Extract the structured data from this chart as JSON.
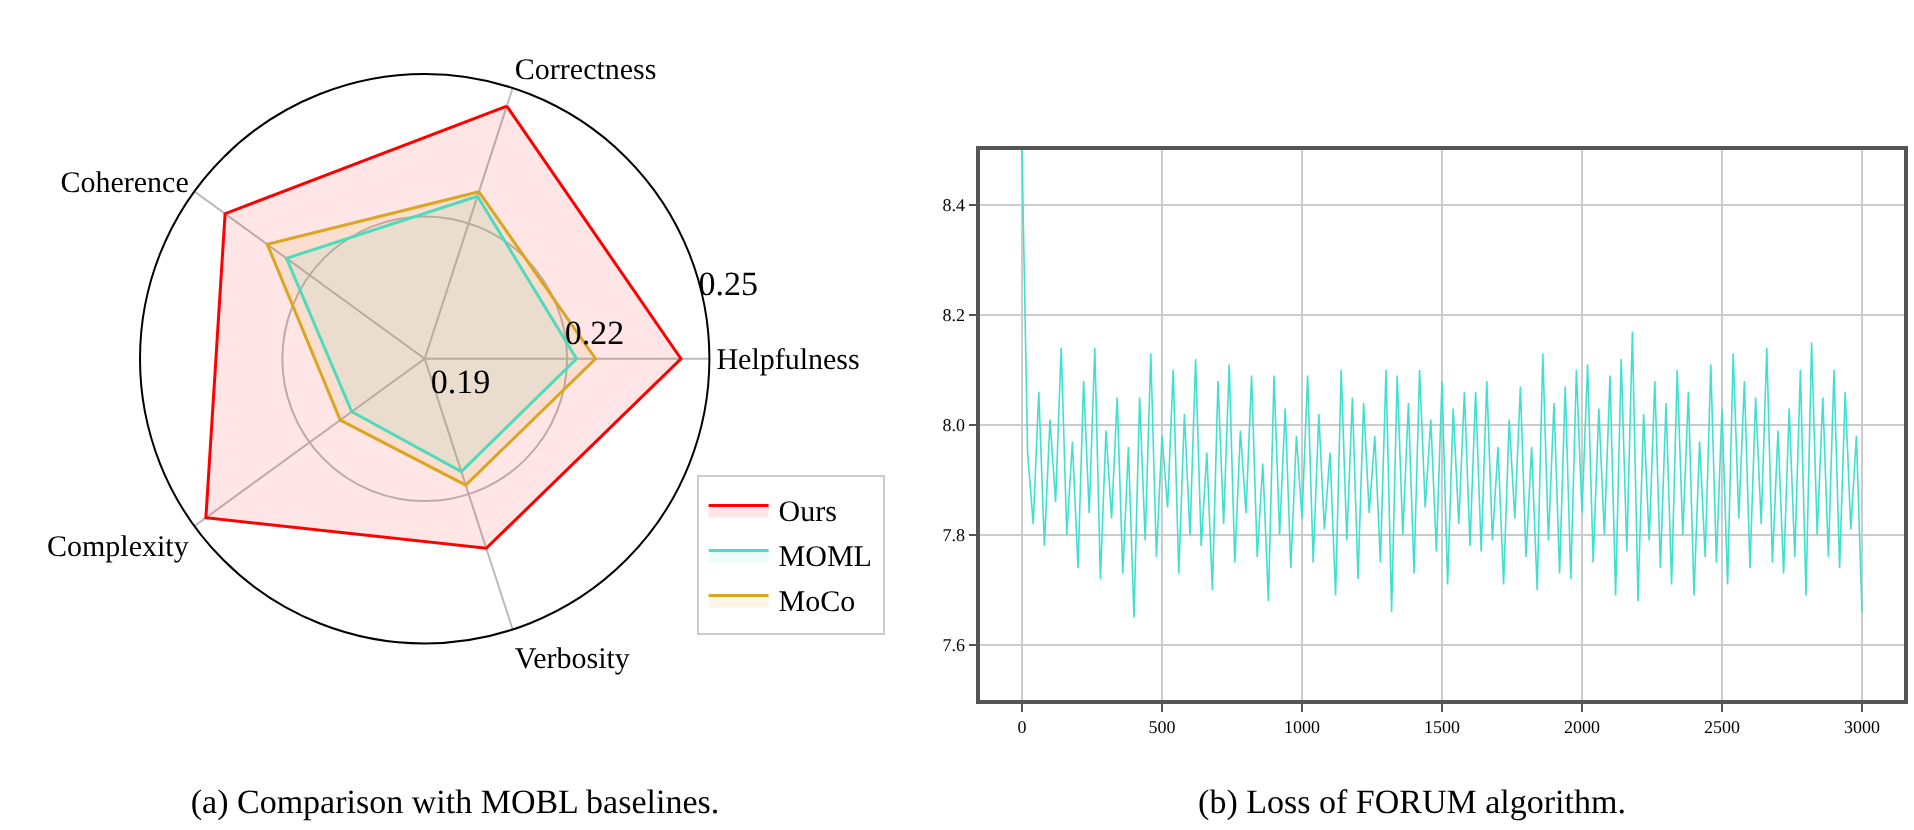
{
  "chart_data": [
    {
      "type": "radar",
      "title": "(a) Comparison with MOBL baselines.",
      "categories": [
        "Correctness",
        "Helpfulness",
        "Verbosity",
        "Complexity",
        "Coherence"
      ],
      "ylim": [
        0.19,
        0.25
      ],
      "yticks": [
        0.19,
        0.22,
        0.25
      ],
      "grid": true,
      "legend": "bottom right",
      "series": [
        {
          "name": "Ours",
          "color": "#ff0000",
          "values": [
            0.246,
            0.244,
            0.232,
            0.247,
            0.242
          ]
        },
        {
          "name": "MOML",
          "color": "#40e0d0",
          "values": [
            0.226,
            0.222,
            0.215,
            0.209,
            0.226
          ]
        },
        {
          "name": "MoCo",
          "color": "#daa520",
          "values": [
            0.227,
            0.226,
            0.218,
            0.212,
            0.231
          ]
        }
      ]
    },
    {
      "type": "line",
      "title": "(b) Loss of FORUM algorithm.",
      "xlim": [
        -150,
        3150
      ],
      "ylim": [
        7.5,
        8.5
      ],
      "xticks": [
        0,
        500,
        1000,
        1500,
        2000,
        2500,
        3000
      ],
      "yticks": [
        7.6,
        7.8,
        {
          "value": 8,
          "label": "8.0"
        },
        8.2,
        8.4
      ],
      "grid": true,
      "legend": false,
      "marker": "none",
      "line_style": "solid",
      "series": [
        {
          "color": "#40e0d0",
          "x": [
            0,
            20,
            40,
            60,
            80,
            100,
            120,
            140,
            160,
            180,
            200,
            220,
            240,
            260,
            280,
            300,
            320,
            340,
            360,
            380,
            400,
            420,
            440,
            460,
            480,
            500,
            520,
            540,
            560,
            580,
            600,
            620,
            640,
            660,
            680,
            700,
            720,
            740,
            760,
            780,
            800,
            820,
            840,
            860,
            880,
            900,
            920,
            940,
            960,
            980,
            1000,
            1020,
            1040,
            1060,
            1080,
            1100,
            1120,
            1140,
            1160,
            1180,
            1200,
            1220,
            1240,
            1260,
            1280,
            1300,
            1320,
            1340,
            1360,
            1380,
            1400,
            1420,
            1440,
            1460,
            1480,
            1500,
            1520,
            1540,
            1560,
            1580,
            1600,
            1620,
            1640,
            1660,
            1680,
            1700,
            1720,
            1740,
            1760,
            1780,
            1800,
            1820,
            1840,
            1860,
            1880,
            1900,
            1920,
            1940,
            1960,
            1980,
            2000,
            2020,
            2040,
            2060,
            2080,
            2100,
            2120,
            2140,
            2160,
            2180,
            2200,
            2220,
            2240,
            2260,
            2280,
            2300,
            2320,
            2340,
            2360,
            2380,
            2400,
            2420,
            2440,
            2460,
            2480,
            2500,
            2520,
            2540,
            2560,
            2580,
            2600,
            2620,
            2640,
            2660,
            2680,
            2700,
            2720,
            2740,
            2760,
            2780,
            2800,
            2820,
            2840,
            2860,
            2880,
            2900,
            2920,
            2940,
            2960,
            2980,
            3000
          ],
          "values": [
            8.5,
            7.95,
            7.82,
            8.06,
            7.78,
            8.01,
            7.86,
            8.14,
            7.8,
            7.97,
            7.74,
            8.08,
            7.84,
            8.14,
            7.72,
            7.99,
            7.83,
            8.05,
            7.73,
            7.96,
            7.65,
            8.05,
            7.79,
            8.13,
            7.76,
            7.98,
            7.85,
            8.1,
            7.73,
            8.02,
            7.8,
            8.12,
            7.78,
            7.95,
            7.7,
            8.08,
            7.82,
            8.11,
            7.75,
            7.99,
            7.84,
            8.09,
            7.76,
            7.93,
            7.68,
            8.09,
            7.8,
            8.03,
            7.74,
            7.98,
            7.83,
            8.09,
            7.75,
            8.02,
            7.81,
            7.95,
            7.69,
            8.1,
            7.79,
            8.05,
            7.72,
            8.04,
            7.84,
            7.98,
            7.75,
            8.1,
            7.66,
            8.09,
            7.8,
            8.04,
            7.73,
            8.1,
            7.85,
            8.01,
            7.77,
            8.08,
            7.71,
            8.03,
            7.82,
            8.06,
            7.78,
            8.06,
            7.77,
            8.08,
            7.79,
            7.96,
            7.71,
            8.01,
            7.83,
            8.07,
            7.76,
            7.96,
            7.7,
            8.13,
            7.79,
            8.04,
            7.73,
            8.07,
            7.72,
            8.1,
            7.84,
            8.11,
            7.75,
            8.03,
            7.8,
            8.09,
            7.69,
            8.12,
            7.77,
            8.17,
            7.68,
            8.02,
            7.79,
            8.08,
            7.74,
            8.04,
            7.71,
            8.1,
            7.8,
            8.06,
            7.69,
            7.97,
            7.76,
            8.11,
            7.75,
            8.03,
            7.71,
            8.13,
            7.83,
            8.08,
            7.74,
            8.05,
            7.82,
            8.14,
            7.75,
            7.99,
            7.73,
            8.03,
            7.76,
            8.1,
            7.69,
            8.15,
            7.8,
            8.05,
            7.76,
            8.1,
            7.74,
            8.06,
            7.81,
            7.98,
            7.66
          ]
        }
      ]
    }
  ]
}
